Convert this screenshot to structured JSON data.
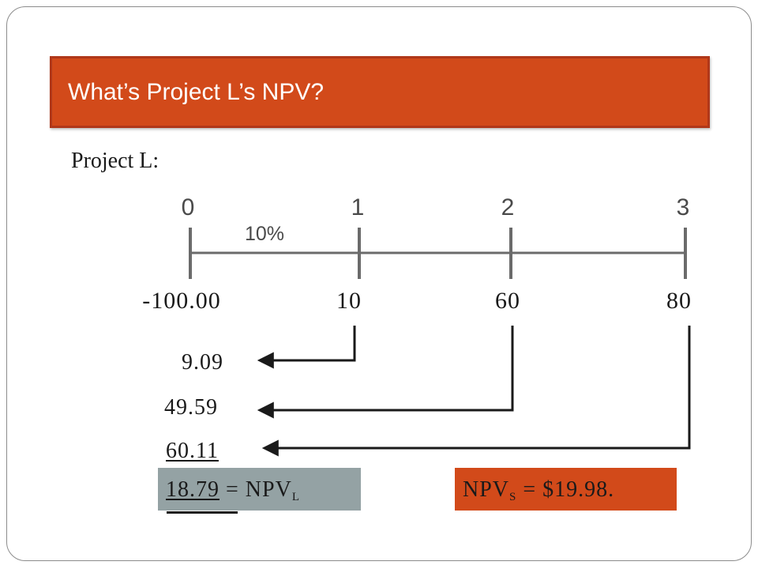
{
  "title": "What’s Project L’s NPV?",
  "project_label": "Project L:",
  "timeline": {
    "periods": [
      "0",
      "1",
      "2",
      "3"
    ],
    "rate": "10%",
    "cash_flows": [
      "-100.00",
      "10",
      "60",
      "80"
    ]
  },
  "present_values": [
    "9.09",
    "49.59",
    "60.11"
  ],
  "npv_l": {
    "value": "18.79",
    "label": "= NPV",
    "subscript": "L"
  },
  "npv_s": {
    "label": "NPV",
    "subscript": "S",
    "value_text": "= $19.98."
  },
  "colors": {
    "accent": "#d24a1a",
    "gray_box": "#94a2a4"
  }
}
